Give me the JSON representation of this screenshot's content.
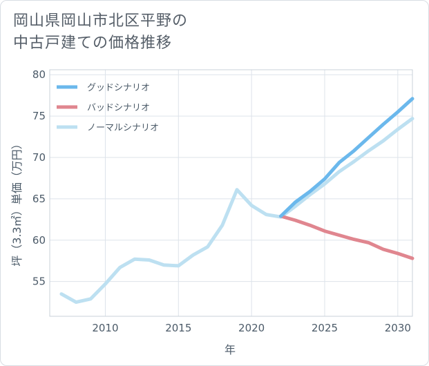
{
  "chart_data": {
    "type": "line",
    "title_lines": [
      "岡山県岡山市北区平野の",
      "中古戸建ての価格推移"
    ],
    "xlabel": "年",
    "ylabel": "坪（3.3㎡）単価（万円）",
    "xlim": [
      2006.2,
      2031
    ],
    "ylim": [
      50.8,
      80.6
    ],
    "x_ticks": [
      2010,
      2015,
      2020,
      2025,
      2030
    ],
    "y_ticks": [
      55,
      60,
      65,
      70,
      75,
      80
    ],
    "grid": true,
    "legend_position": "top-left",
    "series": [
      {
        "name": "グッドシナリオ",
        "color": "#6bb8ec",
        "x": [
          2022,
          2023,
          2024,
          2025,
          2026,
          2027,
          2028,
          2029,
          2030,
          2031
        ],
        "y": [
          62.9,
          64.6,
          65.9,
          67.4,
          69.4,
          70.8,
          72.4,
          74.0,
          75.5,
          77.1
        ]
      },
      {
        "name": "バッドシナリオ",
        "color": "#e0868f",
        "x": [
          2022,
          2023,
          2024,
          2025,
          2026,
          2027,
          2028,
          2029,
          2030,
          2031
        ],
        "y": [
          62.9,
          62.4,
          61.8,
          61.1,
          60.6,
          60.1,
          59.7,
          58.9,
          58.4,
          57.8
        ]
      },
      {
        "name": "ノーマルシナリオ",
        "color": "#bde0f1",
        "x": [
          2007,
          2008,
          2009,
          2010,
          2011,
          2012,
          2013,
          2014,
          2015,
          2016,
          2017,
          2018,
          2019,
          2020,
          2021,
          2022,
          2023,
          2024,
          2025,
          2026,
          2027,
          2028,
          2029,
          2030,
          2031
        ],
        "y": [
          53.5,
          52.5,
          52.9,
          54.7,
          56.7,
          57.7,
          57.6,
          57.0,
          56.9,
          58.2,
          59.2,
          61.8,
          66.1,
          64.2,
          63.1,
          62.8,
          64.1,
          65.5,
          66.8,
          68.3,
          69.5,
          70.8,
          72.0,
          73.4,
          74.7
        ]
      }
    ]
  }
}
